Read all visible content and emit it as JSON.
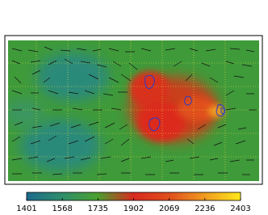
{
  "colorbar": {
    "ticks": [
      1401,
      1568,
      1735,
      1902,
      2069,
      2236,
      2403
    ]
  }
}
